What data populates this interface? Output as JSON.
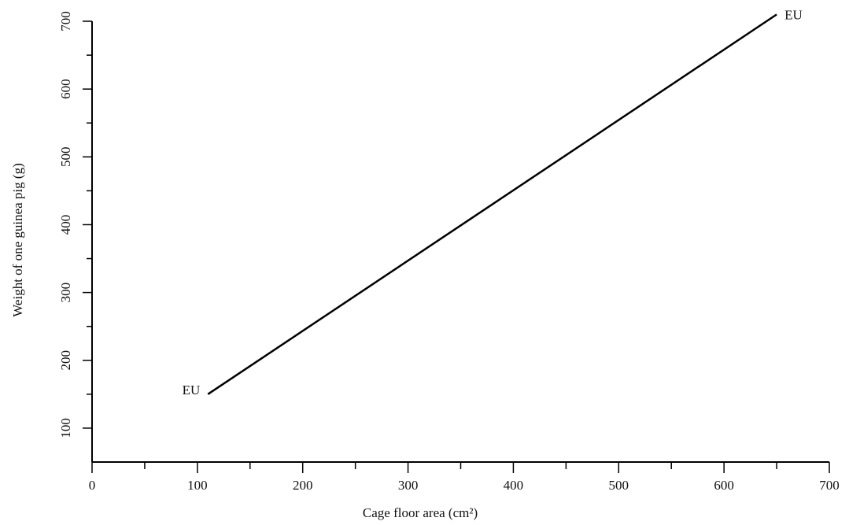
{
  "chart_data": {
    "type": "line",
    "title": "",
    "xlabel": "Cage floor area (cm²)",
    "ylabel": "Weight of one guinea pig (g)",
    "xlim": [
      0,
      700
    ],
    "ylim": [
      50,
      700
    ],
    "x_ticks": [
      0,
      100,
      200,
      300,
      400,
      500,
      600,
      700
    ],
    "y_ticks": [
      100,
      200,
      300,
      400,
      500,
      600,
      700
    ],
    "grid": false,
    "legend": "none",
    "series": [
      {
        "x": [
          110,
          650
        ],
        "y": [
          150,
          710
        ],
        "color": "#000000"
      }
    ],
    "annotations": [
      {
        "text": "EU",
        "x": 110,
        "y": 150,
        "anchor": "left"
      },
      {
        "text": "EU",
        "x": 650,
        "y": 710,
        "anchor": "right"
      }
    ]
  }
}
